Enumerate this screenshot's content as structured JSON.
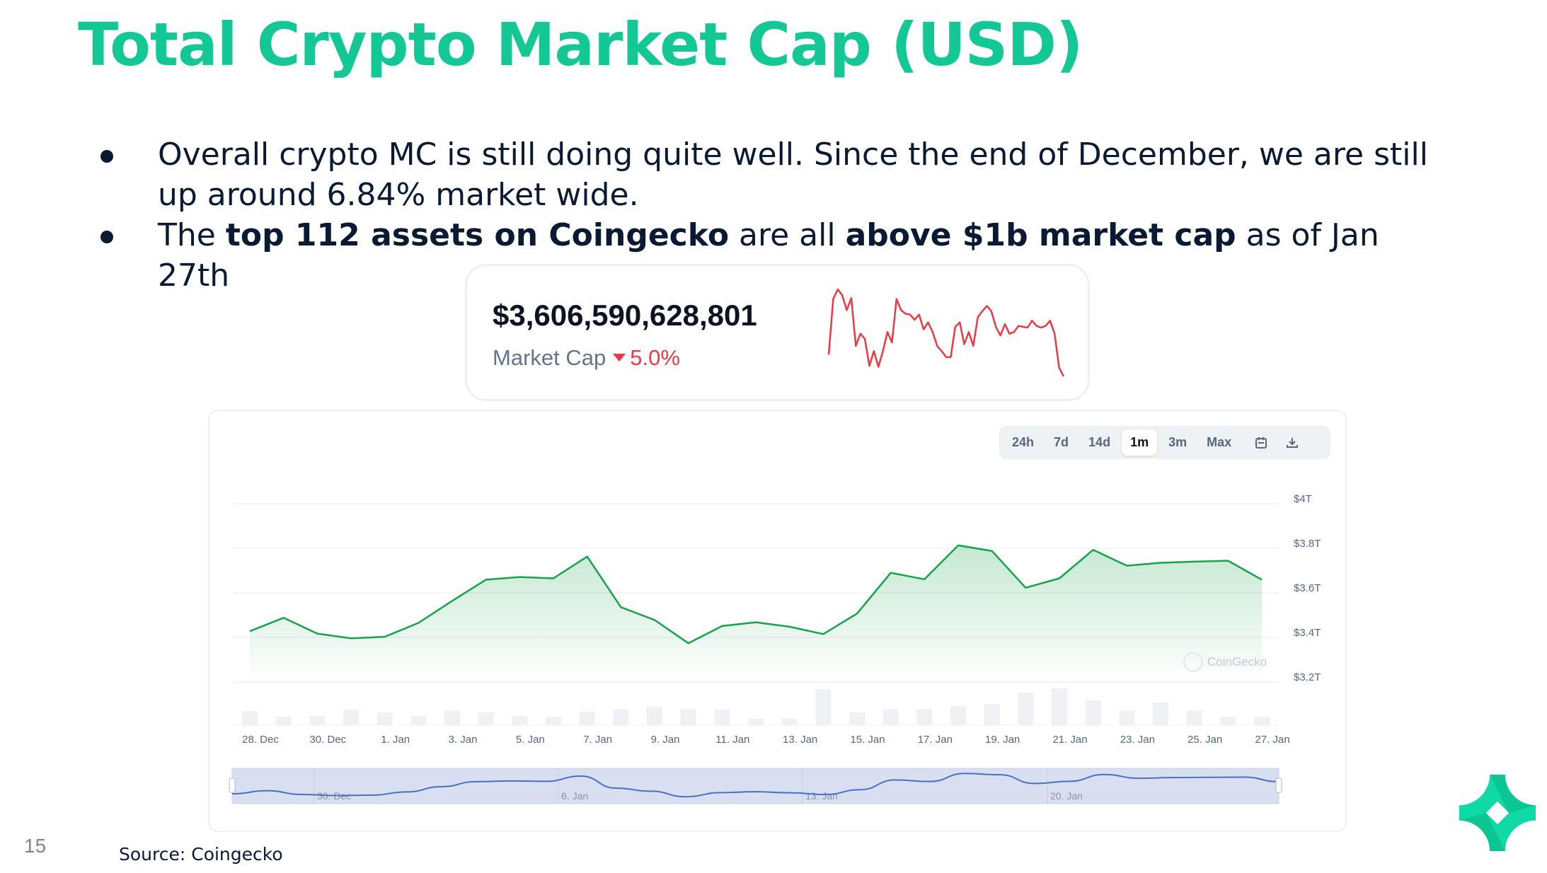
{
  "slide": {
    "title": "Total Crypto Market Cap (USD)",
    "page_number": "15",
    "source": "Source: Coingecko",
    "accent_color": "#14c896",
    "bullets": [
      {
        "text": "Overall crypto MC is still doing quite well. Since the end of December, we are still up around 6.84% market wide."
      },
      {
        "parts": [
          "The ",
          "top 112 assets on Coingecko",
          " are all ",
          "above $1b market cap",
          " as of Jan 27th"
        ]
      }
    ]
  },
  "stat_card": {
    "value": "$3,606,590,628,801",
    "label": "Market Cap",
    "change": "5.0%",
    "direction": "down",
    "change_color": "#ea3943",
    "sparkline_relative": [
      25,
      89,
      100,
      93,
      76,
      90,
      35,
      49,
      43,
      12,
      29,
      11,
      29,
      51,
      39,
      89,
      76,
      72,
      71,
      65,
      71,
      54,
      62,
      51,
      35,
      29,
      22,
      22,
      57,
      62,
      37,
      51,
      35,
      68,
      75,
      81,
      75,
      57,
      47,
      60,
      49,
      51,
      58,
      57,
      56,
      64,
      58,
      56,
      58,
      64,
      49,
      10,
      0
    ]
  },
  "toolbar": {
    "ranges": [
      "24h",
      "7d",
      "14d",
      "1m",
      "3m",
      "Max"
    ],
    "active": "1m",
    "icons": [
      "calendar-icon",
      "download-icon"
    ]
  },
  "watermark": "CoinGecko",
  "chart_data": {
    "type": "area",
    "x": [
      "28 Dec",
      "29 Dec",
      "30 Dec",
      "31 Dec",
      "1 Jan",
      "2 Jan",
      "3 Jan",
      "4 Jan",
      "5 Jan",
      "6 Jan",
      "7 Jan",
      "8 Jan",
      "9 Jan",
      "10 Jan",
      "11 Jan",
      "12 Jan",
      "13 Jan",
      "14 Jan",
      "15 Jan",
      "16 Jan",
      "17 Jan",
      "18 Jan",
      "19 Jan",
      "20 Jan",
      "21 Jan",
      "22 Jan",
      "23 Jan",
      "24 Jan",
      "25 Jan",
      "26 Jan",
      "27 Jan"
    ],
    "series": [
      {
        "values": [
          3.428,
          3.488,
          3.417,
          3.396,
          3.403,
          3.465,
          3.564,
          3.659,
          3.671,
          3.665,
          3.763,
          3.536,
          3.478,
          3.374,
          3.451,
          3.468,
          3.448,
          3.415,
          3.507,
          3.69,
          3.661,
          3.813,
          3.788,
          3.623,
          3.665,
          3.793,
          3.722,
          3.735,
          3.74,
          3.744,
          3.659
        ],
        "color": "#16a34a",
        "unit": "T USD"
      },
      {
        "type": "bar",
        "values_relative": [
          60,
          35,
          38,
          65,
          53,
          38,
          62,
          53,
          38,
          35,
          57,
          68,
          77,
          68,
          65,
          28,
          28,
          152,
          53,
          68,
          68,
          80,
          87,
          137,
          155,
          104,
          62,
          95,
          62,
          35,
          35
        ],
        "color": "#eff1f5"
      }
    ],
    "ylim": [
      3.2,
      4.0
    ],
    "y_ticks": [
      "$3.2T",
      "$3.4T",
      "$3.6T",
      "$3.8T",
      "$4T"
    ],
    "y_tick_values": [
      3.2,
      3.4,
      3.6,
      3.8,
      4.0
    ],
    "x_tick_labels": [
      "28. Dec",
      "30. Dec",
      "1. Jan",
      "3. Jan",
      "5. Jan",
      "7. Jan",
      "9. Jan",
      "11. Jan",
      "13. Jan",
      "15. Jan",
      "17. Jan",
      "19. Jan",
      "21. Jan",
      "23. Jan",
      "25. Jan",
      "27. Jan"
    ],
    "navigator_labels": [
      "30. Dec",
      "6. Jan",
      "13. Jan",
      "20. Jan"
    ],
    "grid": true,
    "legend": "none"
  }
}
